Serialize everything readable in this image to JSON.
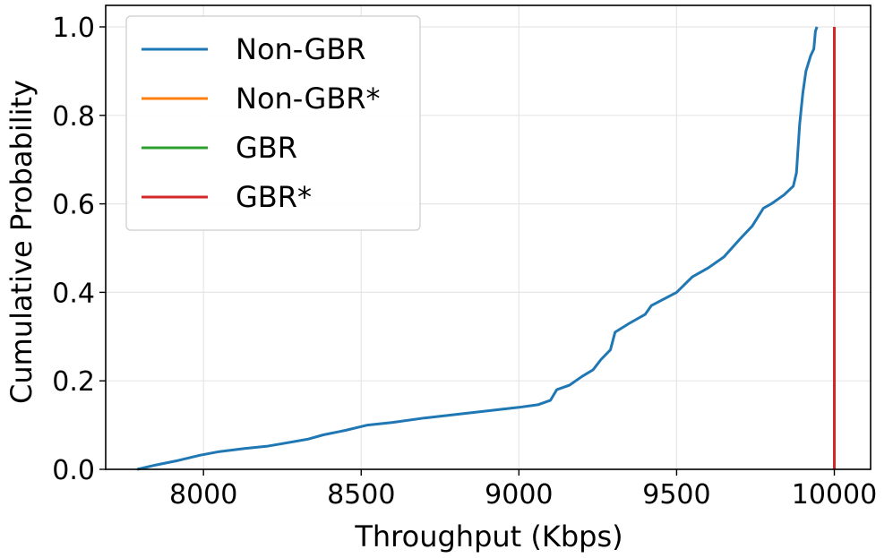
{
  "chart_data": {
    "type": "line",
    "xlabel": "Throughput (Kbps)",
    "ylabel": "Cumulative Probability",
    "xlim": [
      7690,
      10115
    ],
    "ylim": [
      0.0,
      1.0
    ],
    "xticks": [
      8000,
      8500,
      9000,
      9500,
      10000
    ],
    "xtick_labels": [
      "8000",
      "8500",
      "9000",
      "9500",
      "10000"
    ],
    "yticks": [
      0.0,
      0.2,
      0.4,
      0.6,
      0.8,
      1.0
    ],
    "ytick_labels": [
      "0.0",
      "0.2",
      "0.4",
      "0.6",
      "0.8",
      "1.0"
    ],
    "grid": true,
    "legend": {
      "placement": "top-left"
    },
    "series": [
      {
        "name": "Non-GBR",
        "color": "#1f77b4",
        "points": [
          [
            7790,
            0.0
          ],
          [
            7850,
            0.01
          ],
          [
            7920,
            0.02
          ],
          [
            7990,
            0.032
          ],
          [
            8050,
            0.04
          ],
          [
            8130,
            0.047
          ],
          [
            8200,
            0.052
          ],
          [
            8250,
            0.058
          ],
          [
            8330,
            0.068
          ],
          [
            8380,
            0.078
          ],
          [
            8450,
            0.088
          ],
          [
            8520,
            0.1
          ],
          [
            8600,
            0.106
          ],
          [
            8700,
            0.116
          ],
          [
            8800,
            0.124
          ],
          [
            8900,
            0.132
          ],
          [
            9000,
            0.14
          ],
          [
            9060,
            0.146
          ],
          [
            9100,
            0.156
          ],
          [
            9120,
            0.18
          ],
          [
            9160,
            0.19
          ],
          [
            9200,
            0.21
          ],
          [
            9235,
            0.225
          ],
          [
            9260,
            0.248
          ],
          [
            9290,
            0.27
          ],
          [
            9305,
            0.31
          ],
          [
            9350,
            0.33
          ],
          [
            9400,
            0.35
          ],
          [
            9420,
            0.37
          ],
          [
            9460,
            0.385
          ],
          [
            9500,
            0.4
          ],
          [
            9550,
            0.435
          ],
          [
            9600,
            0.455
          ],
          [
            9650,
            0.48
          ],
          [
            9700,
            0.52
          ],
          [
            9740,
            0.55
          ],
          [
            9775,
            0.59
          ],
          [
            9800,
            0.6
          ],
          [
            9840,
            0.62
          ],
          [
            9870,
            0.64
          ],
          [
            9880,
            0.67
          ],
          [
            9890,
            0.78
          ],
          [
            9900,
            0.85
          ],
          [
            9910,
            0.9
          ],
          [
            9925,
            0.935
          ],
          [
            9935,
            0.95
          ],
          [
            9940,
            0.99
          ],
          [
            9945,
            1.0
          ]
        ]
      },
      {
        "name": "Non-GBR*",
        "color": "#ff7f0e",
        "points": [
          [
            10000,
            0.0
          ],
          [
            10000,
            1.0
          ]
        ]
      },
      {
        "name": "GBR",
        "color": "#2ca02c",
        "points": [
          [
            10000,
            0.0
          ],
          [
            10000,
            1.0
          ]
        ]
      },
      {
        "name": "GBR*",
        "color": "#d62728",
        "points": [
          [
            10000,
            0.0
          ],
          [
            10000,
            1.0
          ]
        ]
      }
    ]
  }
}
